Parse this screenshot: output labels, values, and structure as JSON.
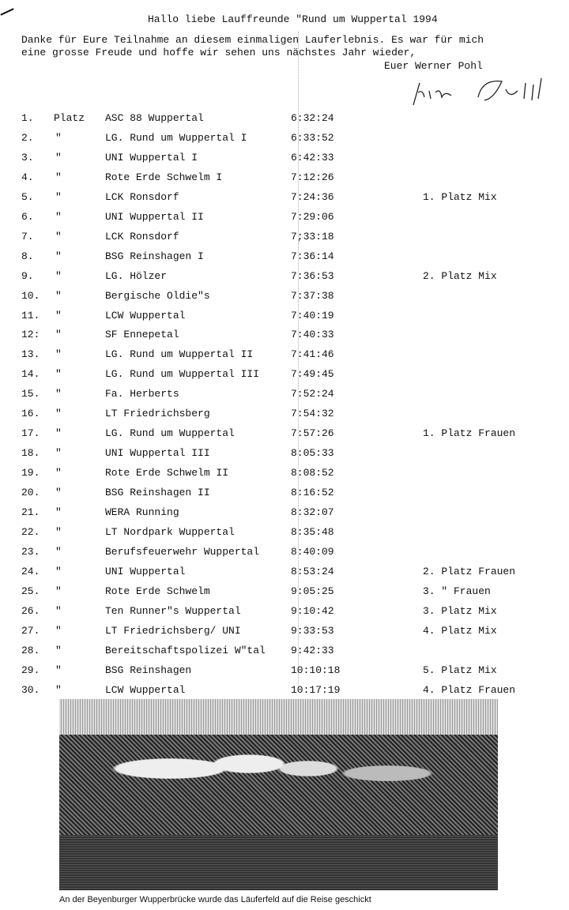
{
  "header": {
    "title": "Hallo liebe Lauffreunde \"Rund um Wuppertal 1994",
    "line1": "Danke für Eure Teilnahme an diesem einmaligen Lauferlebnis. Es war für mich",
    "line2": "eine grosse Freude und hoffe wir sehen uns nächstes Jahr wieder,",
    "closing": "Euer Werner Pohl",
    "signature": "Werner Pohl"
  },
  "results": [
    {
      "rank": "1.",
      "mark": "Platz",
      "team": "ASC 88 Wuppertal",
      "time": "6:32:24",
      "note": ""
    },
    {
      "rank": "2.",
      "mark": "\"",
      "team": "LG. Rund um Wuppertal I",
      "time": "6:33:52",
      "note": ""
    },
    {
      "rank": "3.",
      "mark": "\"",
      "team": "UNI Wuppertal I",
      "time": "6:42:33",
      "note": ""
    },
    {
      "rank": "4.",
      "mark": "\"",
      "team": "Rote Erde Schwelm I",
      "time": "7:12:26",
      "note": ""
    },
    {
      "rank": "5.",
      "mark": "\"",
      "team": "LCK Ronsdorf",
      "time": "7:24:36",
      "note": "1. Platz Mix"
    },
    {
      "rank": "6.",
      "mark": "\"",
      "team": "UNI Wuppertal II",
      "time": "7:29:06",
      "note": ""
    },
    {
      "rank": "7.",
      "mark": "\"",
      "team": "LCK Ronsdorf",
      "time": "7;33:18",
      "note": ""
    },
    {
      "rank": "8.",
      "mark": "\"",
      "team": "BSG Reinshagen I",
      "time": "7:36:14",
      "note": ""
    },
    {
      "rank": "9.",
      "mark": "\"",
      "team": "LG. Hölzer",
      "time": "7:36:53",
      "note": "2. Platz Mix"
    },
    {
      "rank": "10.",
      "mark": "\"",
      "team": "Bergische Oldie\"s",
      "time": "7:37:38",
      "note": ""
    },
    {
      "rank": "11.",
      "mark": "\"",
      "team": "LCW Wuppertal",
      "time": "7:40:19",
      "note": ""
    },
    {
      "rank": "12:",
      "mark": "\"",
      "team": "SF Ennepetal",
      "time": "7:40:33",
      "note": ""
    },
    {
      "rank": "13.",
      "mark": "\"",
      "team": "LG. Rund um Wuppertal II",
      "time": "7:41:46",
      "note": ""
    },
    {
      "rank": "14.",
      "mark": "\"",
      "team": "LG. Rund um Wuppertal III",
      "time": "7:49:45",
      "note": ""
    },
    {
      "rank": "15.",
      "mark": "\"",
      "team": "Fa. Herberts",
      "time": "7:52:24",
      "note": ""
    },
    {
      "rank": "16.",
      "mark": "\"",
      "team": "LT Friedrichsberg",
      "time": "7:54:32",
      "note": ""
    },
    {
      "rank": "17.",
      "mark": "\"",
      "team": "LG. Rund um Wuppertal",
      "time": "7:57:26",
      "note": "1. Platz  Frauen"
    },
    {
      "rank": "18.",
      "mark": "\"",
      "team": "UNI Wuppertal III",
      "time": "8:05:33",
      "note": ""
    },
    {
      "rank": "19.",
      "mark": "\"",
      "team": "Rote Erde Schwelm II",
      "time": "8:08:52",
      "note": ""
    },
    {
      "rank": "20.",
      "mark": "\"",
      "team": "BSG Reinshagen II",
      "time": "8:16:52",
      "note": ""
    },
    {
      "rank": "21.",
      "mark": "\"",
      "team": "WERA Running",
      "time": "8:32:07",
      "note": ""
    },
    {
      "rank": "22.",
      "mark": "\"",
      "team": "LT Nordpark Wuppertal",
      "time": "8:35:48",
      "note": ""
    },
    {
      "rank": "23.",
      "mark": "\"",
      "team": "Berufsfeuerwehr Wuppertal",
      "time": "8:40:09",
      "note": ""
    },
    {
      "rank": "24.",
      "mark": "\"",
      "team": "UNI Wuppertal",
      "time": "8:53:24",
      "note": "2. Platz  Frauen"
    },
    {
      "rank": "25.",
      "mark": "\"",
      "team": "Rote Erde Schwelm",
      "time": "9:05:25",
      "note": "3.    \"    Frauen"
    },
    {
      "rank": "26.",
      "mark": "\"",
      "team": "Ten Runner\"s Wuppertal",
      "time": "9:10:42",
      "note": "3. Platz  Mix"
    },
    {
      "rank": "27.",
      "mark": "\"",
      "team": "LT Friedrichsberg/ UNI",
      "time": "9:33:53",
      "note": "4. Platz  Mix"
    },
    {
      "rank": "28.",
      "mark": "\"",
      "team": "Bereitschaftspolizei W\"tal",
      "time": "9:42:33",
      "note": ""
    },
    {
      "rank": "29.",
      "mark": "\"",
      "team": "BSG Reinshagen",
      "time": "10:10:18",
      "note": "5. Platz  Mix"
    },
    {
      "rank": "30.",
      "mark": "\"",
      "team": "LCW Wuppertal",
      "time": "10:17:19",
      "note": "4. Platz  Frauen"
    }
  ],
  "photo": {
    "caption": "An der Beyenburger Wupperbrücke wurde das Läuferfeld auf die Reise geschickt"
  }
}
